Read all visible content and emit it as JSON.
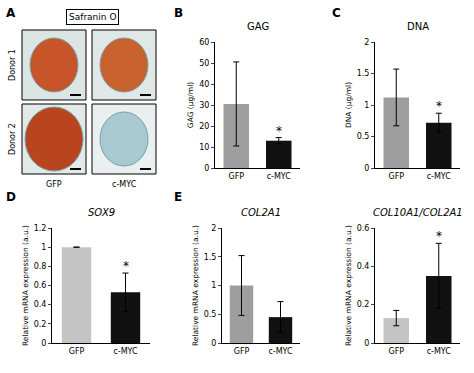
{
  "chart_data": [
    {
      "type": "image_panel",
      "panel": "A",
      "title": "Safranin O",
      "rows": [
        "Donor 1",
        "Donor 2"
      ],
      "columns": [
        "GFP",
        "c-MYC"
      ]
    },
    {
      "type": "bar",
      "panel": "B",
      "title": "GAG",
      "y_label": "GAG (µg/ml)",
      "categories": [
        "GFP",
        "c-MYC"
      ],
      "values": [
        30.5,
        13
      ],
      "errors": [
        20,
        1.5
      ],
      "significance": [
        null,
        "*"
      ],
      "colors": [
        "#9e9e9e",
        "#111111"
      ],
      "ylim": [
        0,
        60
      ],
      "yticks": [
        0,
        10,
        20,
        30,
        40,
        50,
        60
      ]
    },
    {
      "type": "bar",
      "panel": "C",
      "title": "DNA",
      "y_label": "DNA (µg/ml)",
      "categories": [
        "GFP",
        "c-MYC"
      ],
      "values": [
        1.12,
        0.72
      ],
      "errors": [
        0.45,
        0.15
      ],
      "significance": [
        null,
        "*"
      ],
      "colors": [
        "#9e9e9e",
        "#111111"
      ],
      "ylim": [
        0,
        2
      ],
      "yticks": [
        0,
        0.5,
        1,
        1.5,
        2
      ]
    },
    {
      "type": "bar",
      "panel": "D",
      "title": "SOX9",
      "y_label": "Relative mRNA expression (a.u.)",
      "categories": [
        "GFP",
        "c-MYC"
      ],
      "values": [
        1.0,
        0.53
      ],
      "errors": [
        null,
        0.2
      ],
      "significance": [
        null,
        "*"
      ],
      "colors": [
        "#c4c4c4",
        "#111111"
      ],
      "ylim": [
        0,
        1.2
      ],
      "yticks": [
        0,
        0.2,
        0.4,
        0.6,
        0.8,
        1,
        1.2
      ]
    },
    {
      "type": "bar",
      "panel": "E",
      "title": "COL2A1",
      "y_label": "Relative mRNA expression (a.u.)",
      "categories": [
        "GFP",
        "c-MYC"
      ],
      "values": [
        1.0,
        0.45
      ],
      "errors": [
        0.52,
        0.27
      ],
      "colors": [
        "#9e9e9e",
        "#111111"
      ],
      "ylim": [
        0,
        2
      ],
      "yticks": [
        0,
        0.5,
        1,
        1.5,
        2
      ]
    },
    {
      "type": "bar",
      "title": "COL10A1/COL2A1",
      "y_label": "Relative mRNA expression (a.u.)",
      "categories": [
        "GFP",
        "c-MYC"
      ],
      "values": [
        0.13,
        0.35
      ],
      "errors": [
        0.04,
        0.17
      ],
      "significance": [
        null,
        "*"
      ],
      "colors": [
        "#c4c4c4",
        "#111111"
      ],
      "ylim": [
        0,
        0.6
      ],
      "yticks": [
        0,
        0.2,
        0.4,
        0.6
      ]
    }
  ]
}
